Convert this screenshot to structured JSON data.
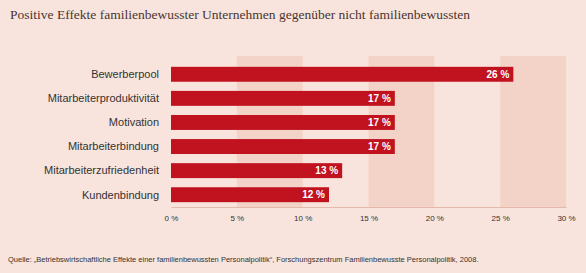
{
  "chart_data": {
    "type": "bar",
    "orientation": "horizontal",
    "title": "Positive Effekte familienbewusster Unternehmen gegenüber nicht familienbewussten",
    "categories": [
      "Bewerberpool",
      "Mitarbeiterproduktivität",
      "Motivation",
      "Mitarbeiterbindung",
      "Mitarbeiterzufriedenheit",
      "Kundenbindung"
    ],
    "values": [
      26,
      17,
      17,
      17,
      13,
      12
    ],
    "value_labels": [
      "26 %",
      "17 %",
      "17 %",
      "17 %",
      "13 %",
      "12 %"
    ],
    "data_labels": true,
    "color": "#c0121f",
    "xlim": [
      0,
      30
    ],
    "xticks": [
      {
        "value": 0,
        "label": "0 %"
      },
      {
        "value": 5,
        "label": "5 %"
      },
      {
        "value": 10,
        "label": "10 %"
      },
      {
        "value": 15,
        "label": "15 %"
      },
      {
        "value": 20,
        "label": "20 %"
      },
      {
        "value": 25,
        "label": "25 %"
      },
      {
        "value": 30,
        "label": "30 %"
      }
    ],
    "grid": true,
    "source": "Quelle: „Betriebswirtschaftliche Effekte einer familienbewussten Personalpolitik“, Forschungszentrum Familienbewusste Personalpolitik, 2008."
  }
}
